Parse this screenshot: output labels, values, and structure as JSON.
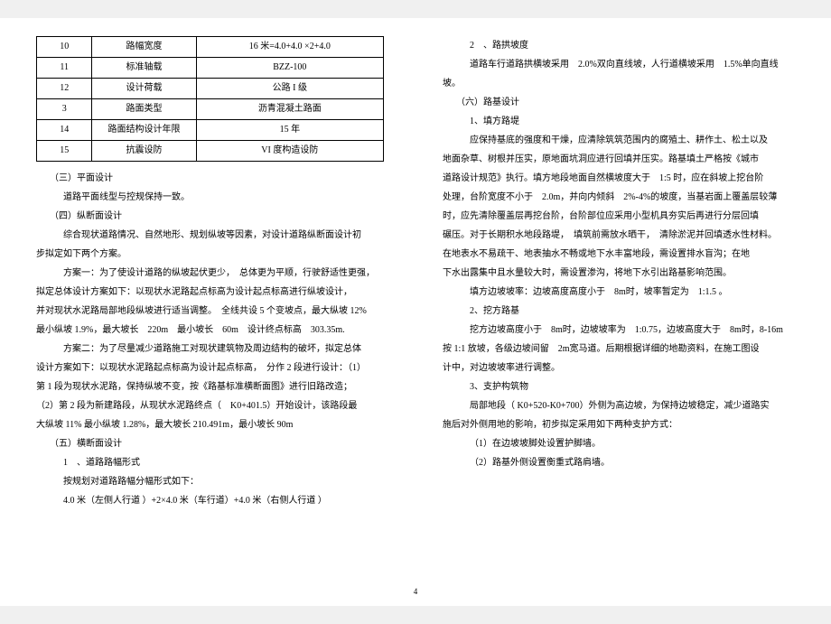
{
  "table": {
    "rows": [
      [
        "10",
        "路幅宽度",
        "16 米=4.0+4.0 ×2+4.0"
      ],
      [
        "11",
        "标准轴载",
        "BZZ-100"
      ],
      [
        "12",
        "设计荷载",
        "公路 I 级"
      ],
      [
        "3",
        "路面类型",
        "沥青混凝土路面"
      ],
      [
        "14",
        "路面结构设计年限",
        "15 年"
      ],
      [
        "15",
        "抗震设防",
        "VI 度构造设防"
      ]
    ]
  },
  "left": {
    "h3": "（三）平面设计",
    "p3": "道路平面线型与控规保持一致。",
    "h4": "（四）纵断面设计",
    "p4a": "综合现状道路情况、自然地形、规划纵坡等因素，对设计道路纵断面设计初",
    "p4b": "步拟定如下两个方案。",
    "p4c": "方案一：为了使设计道路的纵坡起伏更少，　总体更为平顺，行驶舒适性更强，",
    "p4d": "拟定总体设计方案如下：以现状水泥路起点标高为设计起点标高进行纵坡设计，",
    "p4e": "并对现状水泥路局部地段纵坡进行适当调整。　全线共设 5 个变坡点，最大纵坡 12%",
    "p4f": "最小纵坡 1.9%，最大坡长　220m　最小坡长　60m　设计终点标高　303.35m.",
    "p4g": "方案二：为了尽量减少道路施工对现状建筑物及周边结构的破坏，拟定总体",
    "p4h": "设计方案如下：以现状水泥路起点标高为设计起点标高，　分作 2 段进行设计：（1）",
    "p4i": "第 1 段为现状水泥路，保持纵坡不变，按《路基标准横断面图》进行旧路改造；",
    "p4j": "（2）第 2 段为新建路段，从现状水泥路终点（　K0+401.5）开始设计，该路段最",
    "p4k": "大纵坡 11% 最小纵坡 1.28%，最大坡长 210.491m，最小坡长 90m",
    "h5": "（五）横断面设计",
    "s51": "1　、道路路幅形式",
    "p51": "按规划对道路路幅分幅形式如下：",
    "p52": "4.0 米（左侧人行道 ）+2×4.0 米（车行道）+4.0 米（右侧人行道 ）"
  },
  "right": {
    "s52": "2　、路拱坡度",
    "p52a": "道路车行道路拱横坡采用　2.0%双向直线坡，人行道横坡采用　1.5%单向直线",
    "p52b": "坡。",
    "h6": "（六）路基设计",
    "s61": "1、填方路堤",
    "p61a": "应保持基底的强度和干燥，应清除筑筑范围内的腐殖土、耕作土、松土以及",
    "p61b": "地面杂草、树根并压实，原地面坑洞应进行回填并压实。路基填土严格按《城市",
    "p61c": "道路设计规范》执行。填方地段地面自然横坡度大于　1:5 时，应在斜坡上挖台阶",
    "p61d": "处理，台阶宽度不小于　2.0m，并向内倾斜　2%-4%的坡度，当基岩面上覆盖层较薄",
    "p61e": "时，应先清除覆盖层再挖台阶，台阶部位应采用小型机具夯实后再进行分层回填",
    "p61f": "碾压。对于长期积水地段路堤，　填筑前需放水晒干，　清除淤泥并回填透水性材料。",
    "p61g": "在地表水不易疏干、地表抽水不畅或地下水丰富地段，需设置排水盲沟；在地",
    "p61h": "下水出露集中且水量较大时，需设置渗沟，将地下水引出路基影响范围。",
    "p61i": "填方边坡坡率：边坡高度高度小于　8m时，坡率暂定为　1:1.5 。",
    "s62": "2、挖方路基",
    "p62a": "挖方边坡高度小于　8m时，边坡坡率为　1:0.75，边坡高度大于　8m时，8-16m",
    "p62b": "按 1:1 放坡，各级边坡间留　2m宽马道。后期根据详细的地勘资料，在施工图设",
    "p62c": "计中，对边坡坡率进行调整。",
    "s63": "3、支护构筑物",
    "p63a": "局部地段（ K0+520-K0+700）外侧为高边坡，为保持边坡稳定，减少道路实",
    "p63b": "施后对外侧用地的影响，初步拟定采用如下两种支护方式：",
    "p63c": "（1）在边坡坡脚处设置护脚墙。",
    "p63d": "（2）路基外侧设置衡重式路肩墙。"
  },
  "pagenum": "4"
}
